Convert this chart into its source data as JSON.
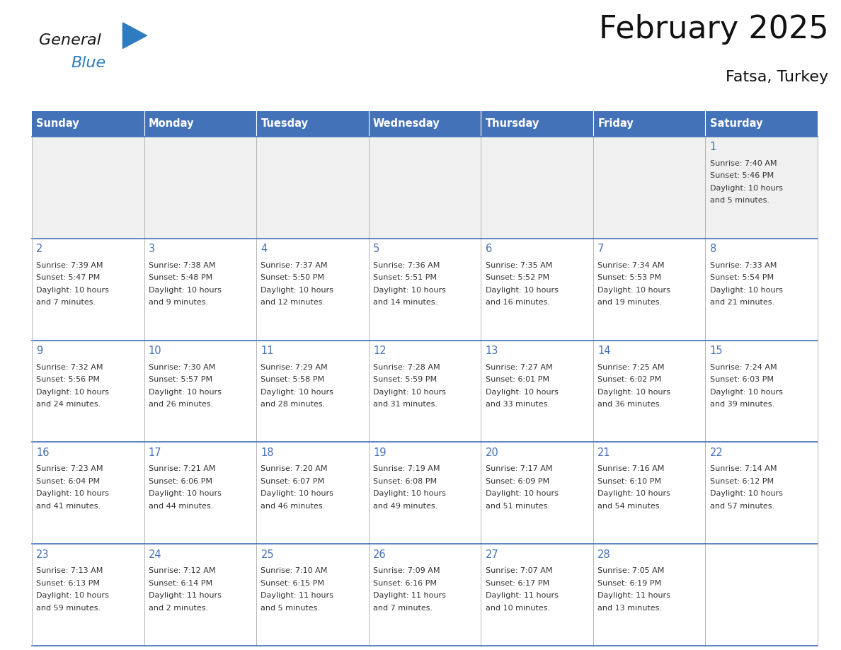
{
  "title": "February 2025",
  "subtitle": "Fatsa, Turkey",
  "header_bg": "#4472b8",
  "header_text_color": "#ffffff",
  "cell_bg_gray": "#f0f0f0",
  "cell_bg_white": "#ffffff",
  "border_color": "#4472b8",
  "days_of_week": [
    "Sunday",
    "Monday",
    "Tuesday",
    "Wednesday",
    "Thursday",
    "Friday",
    "Saturday"
  ],
  "logo_general_color": "#1a1a1a",
  "logo_blue_color": "#2e7bbf",
  "calendar_data": [
    [
      null,
      null,
      null,
      null,
      null,
      null,
      {
        "day": 1,
        "sunrise": "7:40 AM",
        "sunset": "5:46 PM",
        "daylight": "10 hours and 5 minutes."
      }
    ],
    [
      {
        "day": 2,
        "sunrise": "7:39 AM",
        "sunset": "5:47 PM",
        "daylight": "10 hours and 7 minutes."
      },
      {
        "day": 3,
        "sunrise": "7:38 AM",
        "sunset": "5:48 PM",
        "daylight": "10 hours and 9 minutes."
      },
      {
        "day": 4,
        "sunrise": "7:37 AM",
        "sunset": "5:50 PM",
        "daylight": "10 hours and 12 minutes."
      },
      {
        "day": 5,
        "sunrise": "7:36 AM",
        "sunset": "5:51 PM",
        "daylight": "10 hours and 14 minutes."
      },
      {
        "day": 6,
        "sunrise": "7:35 AM",
        "sunset": "5:52 PM",
        "daylight": "10 hours and 16 minutes."
      },
      {
        "day": 7,
        "sunrise": "7:34 AM",
        "sunset": "5:53 PM",
        "daylight": "10 hours and 19 minutes."
      },
      {
        "day": 8,
        "sunrise": "7:33 AM",
        "sunset": "5:54 PM",
        "daylight": "10 hours and 21 minutes."
      }
    ],
    [
      {
        "day": 9,
        "sunrise": "7:32 AM",
        "sunset": "5:56 PM",
        "daylight": "10 hours and 24 minutes."
      },
      {
        "day": 10,
        "sunrise": "7:30 AM",
        "sunset": "5:57 PM",
        "daylight": "10 hours and 26 minutes."
      },
      {
        "day": 11,
        "sunrise": "7:29 AM",
        "sunset": "5:58 PM",
        "daylight": "10 hours and 28 minutes."
      },
      {
        "day": 12,
        "sunrise": "7:28 AM",
        "sunset": "5:59 PM",
        "daylight": "10 hours and 31 minutes."
      },
      {
        "day": 13,
        "sunrise": "7:27 AM",
        "sunset": "6:01 PM",
        "daylight": "10 hours and 33 minutes."
      },
      {
        "day": 14,
        "sunrise": "7:25 AM",
        "sunset": "6:02 PM",
        "daylight": "10 hours and 36 minutes."
      },
      {
        "day": 15,
        "sunrise": "7:24 AM",
        "sunset": "6:03 PM",
        "daylight": "10 hours and 39 minutes."
      }
    ],
    [
      {
        "day": 16,
        "sunrise": "7:23 AM",
        "sunset": "6:04 PM",
        "daylight": "10 hours and 41 minutes."
      },
      {
        "day": 17,
        "sunrise": "7:21 AM",
        "sunset": "6:06 PM",
        "daylight": "10 hours and 44 minutes."
      },
      {
        "day": 18,
        "sunrise": "7:20 AM",
        "sunset": "6:07 PM",
        "daylight": "10 hours and 46 minutes."
      },
      {
        "day": 19,
        "sunrise": "7:19 AM",
        "sunset": "6:08 PM",
        "daylight": "10 hours and 49 minutes."
      },
      {
        "day": 20,
        "sunrise": "7:17 AM",
        "sunset": "6:09 PM",
        "daylight": "10 hours and 51 minutes."
      },
      {
        "day": 21,
        "sunrise": "7:16 AM",
        "sunset": "6:10 PM",
        "daylight": "10 hours and 54 minutes."
      },
      {
        "day": 22,
        "sunrise": "7:14 AM",
        "sunset": "6:12 PM",
        "daylight": "10 hours and 57 minutes."
      }
    ],
    [
      {
        "day": 23,
        "sunrise": "7:13 AM",
        "sunset": "6:13 PM",
        "daylight": "10 hours and 59 minutes."
      },
      {
        "day": 24,
        "sunrise": "7:12 AM",
        "sunset": "6:14 PM",
        "daylight": "11 hours and 2 minutes."
      },
      {
        "day": 25,
        "sunrise": "7:10 AM",
        "sunset": "6:15 PM",
        "daylight": "11 hours and 5 minutes."
      },
      {
        "day": 26,
        "sunrise": "7:09 AM",
        "sunset": "6:16 PM",
        "daylight": "11 hours and 7 minutes."
      },
      {
        "day": 27,
        "sunrise": "7:07 AM",
        "sunset": "6:17 PM",
        "daylight": "11 hours and 10 minutes."
      },
      {
        "day": 28,
        "sunrise": "7:05 AM",
        "sunset": "6:19 PM",
        "daylight": "11 hours and 13 minutes."
      },
      null
    ]
  ],
  "text_color_day": "#4472b8",
  "text_color_info": "#333333",
  "line_color_h": "#4472b8",
  "line_color_v": "#aaaaaa"
}
